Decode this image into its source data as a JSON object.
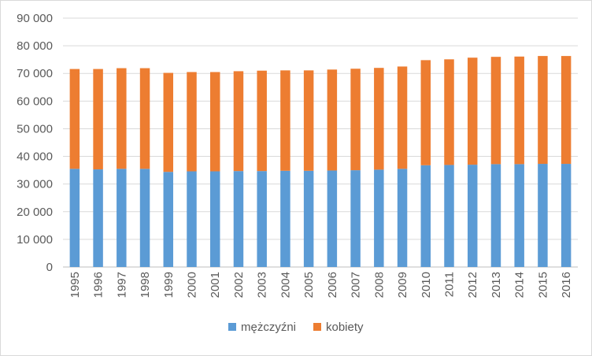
{
  "chart_data": {
    "type": "bar",
    "stacked": true,
    "title": "",
    "xlabel": "",
    "ylabel": "",
    "ylim": [
      0,
      90000
    ],
    "yticks": [
      0,
      10000,
      20000,
      30000,
      40000,
      50000,
      60000,
      70000,
      80000,
      90000
    ],
    "ytick_labels": [
      "0",
      "10 000",
      "20 000",
      "30 000",
      "40 000",
      "50 000",
      "60 000",
      "70 000",
      "80 000",
      "90 000"
    ],
    "grid": true,
    "legend_position": "bottom",
    "categories": [
      "1995",
      "1996",
      "1997",
      "1998",
      "1999",
      "2000",
      "2001",
      "2002",
      "2003",
      "2004",
      "2005",
      "2006",
      "2007",
      "2008",
      "2009",
      "2010",
      "2011",
      "2012",
      "2013",
      "2014",
      "2015",
      "2016"
    ],
    "series": [
      {
        "name": "mężczyźni",
        "color": "#5b9bd5",
        "values": [
          35500,
          35300,
          35500,
          35500,
          34400,
          34600,
          34600,
          34700,
          34700,
          34800,
          34800,
          34900,
          35000,
          35200,
          35500,
          36800,
          36900,
          37000,
          37200,
          37200,
          37300,
          37300
        ]
      },
      {
        "name": "kobiety",
        "color": "#ed7d31",
        "values": [
          36100,
          36300,
          36400,
          36400,
          35800,
          35900,
          35900,
          36100,
          36300,
          36300,
          36300,
          36500,
          36700,
          36800,
          37000,
          38000,
          38200,
          38700,
          38800,
          38900,
          39000,
          39000
        ]
      }
    ]
  }
}
